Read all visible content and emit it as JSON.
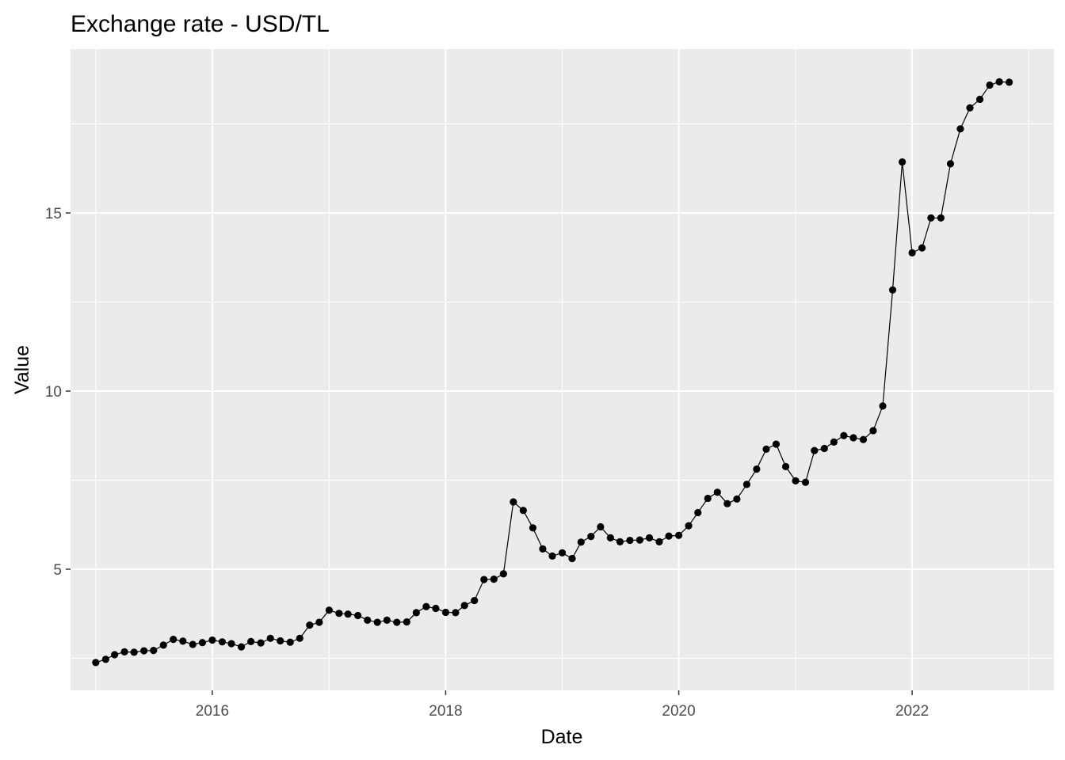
{
  "chart_data": {
    "type": "line",
    "title": "Exchange rate - USD/TL",
    "xlabel": "Date",
    "ylabel": "Value",
    "x_ticks": [
      "2016",
      "2018",
      "2020",
      "2022"
    ],
    "y_ticks": [
      5,
      10,
      15
    ],
    "ylim": [
      1.6,
      19.6
    ],
    "xlim": [
      "2014-10-14",
      "2023-03-21"
    ],
    "grid": true,
    "panel_background": "#ebebeb",
    "gridline_color": "#ffffff",
    "series_color": "#000000",
    "series": [
      {
        "x": [
          "2015-01-01",
          "2015-02-01",
          "2015-03-01",
          "2015-04-01",
          "2015-05-01",
          "2015-06-01",
          "2015-07-01",
          "2015-08-01",
          "2015-09-01",
          "2015-10-01",
          "2015-11-01",
          "2015-12-01",
          "2016-01-01",
          "2016-02-01",
          "2016-03-01",
          "2016-04-01",
          "2016-05-01",
          "2016-06-01",
          "2016-07-01",
          "2016-08-01",
          "2016-09-01",
          "2016-10-01",
          "2016-11-01",
          "2016-12-01",
          "2017-01-01",
          "2017-02-01",
          "2017-03-01",
          "2017-04-01",
          "2017-05-01",
          "2017-06-01",
          "2017-07-01",
          "2017-08-01",
          "2017-09-01",
          "2017-10-01",
          "2017-11-01",
          "2017-12-01",
          "2018-01-01",
          "2018-02-01",
          "2018-03-01",
          "2018-04-01",
          "2018-05-01",
          "2018-06-01",
          "2018-07-01",
          "2018-08-01",
          "2018-09-01",
          "2018-10-01",
          "2018-11-01",
          "2018-12-01",
          "2019-01-01",
          "2019-02-01",
          "2019-03-01",
          "2019-04-01",
          "2019-05-01",
          "2019-06-01",
          "2019-07-01",
          "2019-08-01",
          "2019-09-01",
          "2019-10-01",
          "2019-11-01",
          "2019-12-01",
          "2020-01-01",
          "2020-02-01",
          "2020-03-01",
          "2020-04-01",
          "2020-05-01",
          "2020-06-01",
          "2020-07-01",
          "2020-08-01",
          "2020-09-01",
          "2020-10-01",
          "2020-11-01",
          "2020-12-01",
          "2021-01-01",
          "2021-02-01",
          "2021-03-01",
          "2021-04-01",
          "2021-05-01",
          "2021-06-01",
          "2021-07-01",
          "2021-08-01",
          "2021-09-01",
          "2021-10-01",
          "2021-11-01",
          "2021-12-01",
          "2022-01-01",
          "2022-02-01",
          "2022-03-01",
          "2022-04-01",
          "2022-05-01",
          "2022-06-01",
          "2022-07-01",
          "2022-08-01",
          "2022-09-01",
          "2022-10-01",
          "2022-11-01"
        ],
        "values": [
          2.38,
          2.47,
          2.6,
          2.68,
          2.67,
          2.71,
          2.72,
          2.87,
          3.03,
          2.98,
          2.89,
          2.94,
          3.01,
          2.96,
          2.91,
          2.82,
          2.97,
          2.93,
          3.06,
          2.99,
          2.95,
          3.06,
          3.43,
          3.51,
          3.85,
          3.76,
          3.74,
          3.7,
          3.57,
          3.51,
          3.57,
          3.51,
          3.52,
          3.78,
          3.95,
          3.9,
          3.79,
          3.78,
          3.98,
          4.12,
          4.71,
          4.72,
          4.87,
          6.89,
          6.65,
          6.16,
          5.57,
          5.37,
          5.46,
          5.3,
          5.76,
          5.92,
          6.19,
          5.88,
          5.77,
          5.81,
          5.82,
          5.88,
          5.77,
          5.93,
          5.95,
          6.22,
          6.59,
          6.99,
          7.16,
          6.84,
          6.97,
          7.38,
          7.81,
          8.37,
          8.51,
          7.88,
          7.48,
          7.44,
          8.33,
          8.39,
          8.57,
          8.75,
          8.69,
          8.64,
          8.89,
          9.58,
          12.84,
          16.43,
          13.88,
          14.02,
          14.86,
          14.86,
          16.38,
          17.36,
          17.95,
          18.19,
          18.59,
          18.68,
          18.67
        ]
      }
    ]
  }
}
